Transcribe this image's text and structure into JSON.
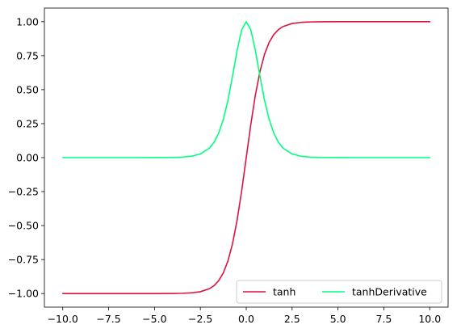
{
  "chart_data": {
    "type": "line",
    "title": "",
    "xlabel": "",
    "ylabel": "",
    "xlim": [
      -11.0,
      11.0
    ],
    "ylim": [
      -1.1,
      1.1
    ],
    "x_ticks": [
      -10.0,
      -7.5,
      -5.0,
      -2.5,
      0.0,
      2.5,
      5.0,
      7.5,
      10.0
    ],
    "x_tick_labels": [
      "−10.0",
      "−7.5",
      "−5.0",
      "−2.5",
      "0.0",
      "2.5",
      "5.0",
      "7.5",
      "10.0"
    ],
    "y_ticks": [
      1.0,
      0.75,
      0.5,
      0.25,
      0.0,
      -0.25,
      -0.5,
      -0.75,
      -1.0
    ],
    "y_tick_labels": [
      "1.00",
      "0.75",
      "0.50",
      "0.25",
      "0.00",
      "−0.25",
      "−0.50",
      "−0.75",
      "−1.00"
    ],
    "grid": false,
    "legend_position": "lower-right",
    "x": [
      -10,
      -9,
      -8,
      -7,
      -6,
      -5,
      -4,
      -3.5,
      -3,
      -2.5,
      -2,
      -1.75,
      -1.5,
      -1.25,
      -1,
      -0.75,
      -0.5,
      -0.25,
      0,
      0.25,
      0.5,
      0.75,
      1,
      1.25,
      1.5,
      1.75,
      2,
      2.5,
      3,
      3.5,
      4,
      5,
      6,
      7,
      8,
      9,
      10
    ],
    "series": [
      {
        "name": "tanh",
        "color": "#dc143c",
        "values": [
          -1.0,
          -1.0,
          -1.0,
          -1.0,
          -1.0,
          -0.9999,
          -0.9993,
          -0.9982,
          -0.9951,
          -0.9866,
          -0.964,
          -0.9414,
          -0.9051,
          -0.8483,
          -0.7616,
          -0.6351,
          -0.4621,
          -0.2449,
          0.0,
          0.2449,
          0.4621,
          0.6351,
          0.7616,
          0.8483,
          0.9051,
          0.9414,
          0.964,
          0.9866,
          0.9951,
          0.9982,
          0.9993,
          0.9999,
          1.0,
          1.0,
          1.0,
          1.0,
          1.0
        ]
      },
      {
        "name": "tanhDerivative",
        "color": "#00ff7f",
        "values": [
          0.0,
          0.0,
          0.0,
          0.0,
          0.0,
          0.0002,
          0.0013,
          0.0036,
          0.0099,
          0.0266,
          0.0707,
          0.1138,
          0.1807,
          0.2805,
          0.42,
          0.5966,
          0.7864,
          0.94,
          1.0,
          0.94,
          0.7864,
          0.5966,
          0.42,
          0.2805,
          0.1807,
          0.1138,
          0.0707,
          0.0266,
          0.0099,
          0.0036,
          0.0013,
          0.0002,
          0.0,
          0.0,
          0.0,
          0.0,
          0.0
        ]
      }
    ]
  }
}
